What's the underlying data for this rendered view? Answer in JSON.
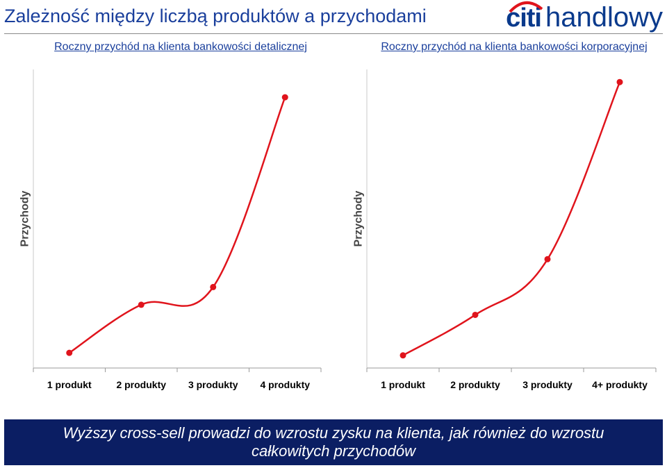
{
  "page": {
    "title": "Zależność między liczbą produktów a przychodami",
    "logo_text_left": "citi",
    "logo_text_right": "handlowy",
    "accent_color": "#e0141c",
    "brand_color": "#0a3a8c"
  },
  "chart_data": [
    {
      "type": "line",
      "title": "Roczny przychód na klienta bankowości detalicznej",
      "ylabel": "Przychody",
      "xlabel": "",
      "categories": [
        "1 produkt",
        "2 produkty",
        "3 produkty",
        "4 produkty"
      ],
      "values": [
        6,
        25,
        32,
        107
      ],
      "ylim": [
        0,
        118
      ],
      "grid": false,
      "line_color": "#e0141c"
    },
    {
      "type": "line",
      "title": "Roczny przychód na klienta bankowości korporacyjnej",
      "ylabel": "Przychody",
      "xlabel": "",
      "categories": [
        "1 produkt",
        "2 produkty",
        "3 produkty",
        "4+ produkty"
      ],
      "values": [
        5,
        21,
        43,
        113
      ],
      "ylim": [
        0,
        118
      ],
      "grid": false,
      "line_color": "#e0141c"
    }
  ],
  "footer": {
    "line1": "Wyższy cross-sell prowadzi do wzrostu zysku na klienta,  jak również do wzrostu",
    "line2": "całkowitych przychodów"
  }
}
